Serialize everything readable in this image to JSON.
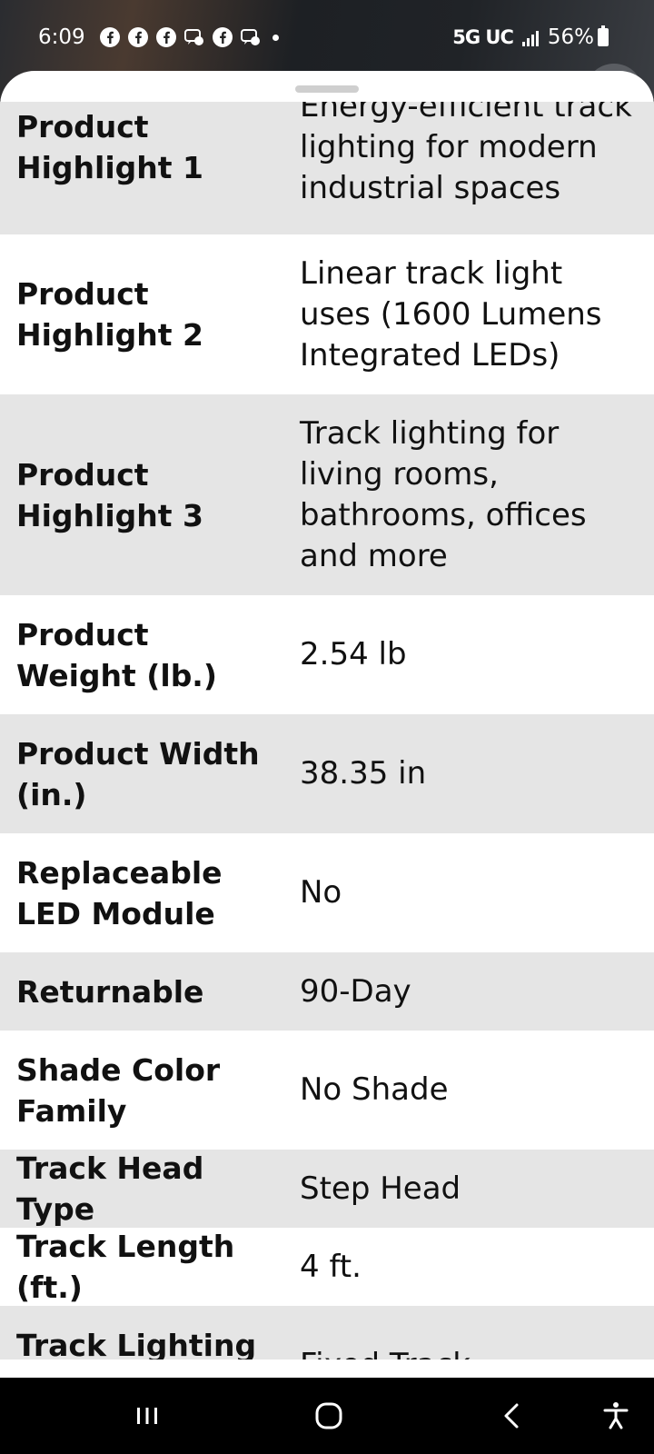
{
  "status_bar": {
    "time": "6:09",
    "network": "5G UC",
    "battery": "56%",
    "notification_icons": [
      "facebook-icon",
      "facebook-icon",
      "facebook-icon",
      "messenger-icon",
      "facebook-icon",
      "messenger-icon"
    ]
  },
  "specs": [
    {
      "label": "Product Highlight 1",
      "value": "Energy-efficient track lighting for modern industrial spaces"
    },
    {
      "label": "Product Highlight 2",
      "value": "Linear track light uses (1600 Lumens Integrated LEDs)"
    },
    {
      "label": "Product Highlight 3",
      "value": "Track lighting for living rooms, bathrooms, offices and more"
    },
    {
      "label": "Product Weight (lb.)",
      "value": "2.54 lb"
    },
    {
      "label": "Product Width (in.)",
      "value": "38.35 in"
    },
    {
      "label": "Replaceable LED Module",
      "value": "No"
    },
    {
      "label": "Returnable",
      "value": "90-Day"
    },
    {
      "label": "Shade Color Family",
      "value": "No Shade"
    },
    {
      "label": "Track Head Type",
      "value": "Step Head"
    },
    {
      "label": "Track Length (ft.)",
      "value": "4 ft."
    },
    {
      "label": "Track Lighting Type",
      "value": "Fixed Track"
    }
  ],
  "nav_bar": {
    "buttons": [
      "recent-apps-icon",
      "home-icon",
      "back-icon",
      "accessibility-icon"
    ]
  }
}
